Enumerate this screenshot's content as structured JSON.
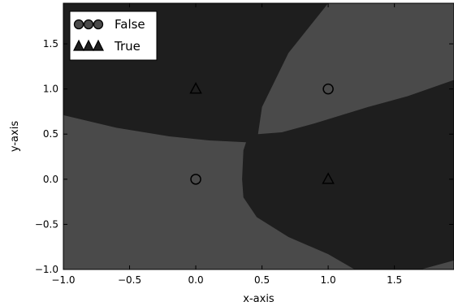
{
  "chart_data": {
    "type": "scatter",
    "title": "",
    "xlabel": "x-axis",
    "ylabel": "y-axis",
    "xlim": [
      -1.0,
      1.95
    ],
    "ylim": [
      -1.0,
      1.95
    ],
    "x_ticks": [
      -1.0,
      -0.5,
      0.0,
      0.5,
      1.0,
      1.5
    ],
    "y_ticks": [
      -1.0,
      -0.5,
      0.0,
      0.5,
      1.0,
      1.5
    ],
    "x_tick_labels": [
      "−1.0",
      "−0.5",
      "0.0",
      "0.5",
      "1.0",
      "1.5"
    ],
    "y_tick_labels": [
      "−1.0",
      "−0.5",
      "0.0",
      "0.5",
      "1.0",
      "1.5"
    ],
    "grid": false,
    "legend_position": "top-left",
    "background": "decision regions",
    "region_colors": {
      "True": "#1e1e1e",
      "False": "#4a4a4a"
    },
    "series": [
      {
        "name": "False",
        "marker": "circle",
        "color": "#4a4a4a",
        "points": [
          [
            0,
            0
          ],
          [
            1,
            1
          ]
        ]
      },
      {
        "name": "True",
        "marker": "triangle",
        "color": "#1e1e1e",
        "points": [
          [
            0,
            1
          ],
          [
            1,
            0
          ]
        ]
      }
    ]
  }
}
